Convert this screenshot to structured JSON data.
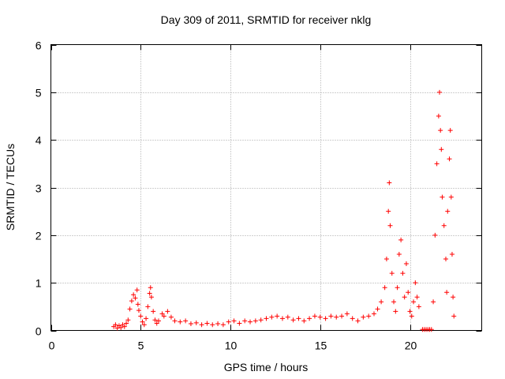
{
  "chart_data": {
    "type": "scatter",
    "title": "Day 309 of 2011, SRMTID for receiver nklg",
    "xlabel": "GPS time / hours",
    "ylabel": "SRMTID / TECUs",
    "xlim": [
      0,
      24
    ],
    "ylim": [
      0,
      6
    ],
    "x_ticks": [
      "0",
      "5",
      "10",
      "15",
      "20"
    ],
    "y_ticks": [
      "0",
      "1",
      "2",
      "3",
      "4",
      "5",
      "6"
    ],
    "grid": true,
    "marker": "+",
    "series_color": "#ff0000",
    "series": [
      {
        "name": "SRMTID",
        "points": [
          [
            3.5,
            0.08
          ],
          [
            3.6,
            0.12
          ],
          [
            3.7,
            0.05
          ],
          [
            3.8,
            0.1
          ],
          [
            3.9,
            0.06
          ],
          [
            4.0,
            0.12
          ],
          [
            4.1,
            0.08
          ],
          [
            4.2,
            0.15
          ],
          [
            4.3,
            0.22
          ],
          [
            4.4,
            0.45
          ],
          [
            4.5,
            0.62
          ],
          [
            4.6,
            0.75
          ],
          [
            4.7,
            0.68
          ],
          [
            4.8,
            0.85
          ],
          [
            4.85,
            0.55
          ],
          [
            4.9,
            0.42
          ],
          [
            5.0,
            0.3
          ],
          [
            5.1,
            0.18
          ],
          [
            5.2,
            0.12
          ],
          [
            5.3,
            0.25
          ],
          [
            5.4,
            0.5
          ],
          [
            5.5,
            0.78
          ],
          [
            5.55,
            0.9
          ],
          [
            5.6,
            0.7
          ],
          [
            5.7,
            0.4
          ],
          [
            5.8,
            0.22
          ],
          [
            5.9,
            0.15
          ],
          [
            6.0,
            0.2
          ],
          [
            6.2,
            0.35
          ],
          [
            6.3,
            0.3
          ],
          [
            6.5,
            0.4
          ],
          [
            6.7,
            0.28
          ],
          [
            6.9,
            0.2
          ],
          [
            7.2,
            0.18
          ],
          [
            7.5,
            0.2
          ],
          [
            7.8,
            0.14
          ],
          [
            8.1,
            0.16
          ],
          [
            8.4,
            0.12
          ],
          [
            8.7,
            0.15
          ],
          [
            9.0,
            0.12
          ],
          [
            9.3,
            0.14
          ],
          [
            9.6,
            0.12
          ],
          [
            9.9,
            0.18
          ],
          [
            10.2,
            0.2
          ],
          [
            10.5,
            0.15
          ],
          [
            10.8,
            0.2
          ],
          [
            11.1,
            0.18
          ],
          [
            11.4,
            0.2
          ],
          [
            11.7,
            0.22
          ],
          [
            12.0,
            0.25
          ],
          [
            12.3,
            0.28
          ],
          [
            12.6,
            0.3
          ],
          [
            12.9,
            0.25
          ],
          [
            13.2,
            0.28
          ],
          [
            13.5,
            0.22
          ],
          [
            13.8,
            0.25
          ],
          [
            14.1,
            0.2
          ],
          [
            14.4,
            0.25
          ],
          [
            14.7,
            0.3
          ],
          [
            15.0,
            0.28
          ],
          [
            15.3,
            0.25
          ],
          [
            15.6,
            0.3
          ],
          [
            15.9,
            0.28
          ],
          [
            16.2,
            0.3
          ],
          [
            16.5,
            0.35
          ],
          [
            16.8,
            0.25
          ],
          [
            17.1,
            0.2
          ],
          [
            17.4,
            0.28
          ],
          [
            17.7,
            0.3
          ],
          [
            18.0,
            0.35
          ],
          [
            18.2,
            0.45
          ],
          [
            18.4,
            0.6
          ],
          [
            18.6,
            0.9
          ],
          [
            18.7,
            1.5
          ],
          [
            18.8,
            2.5
          ],
          [
            18.85,
            3.1
          ],
          [
            18.9,
            2.2
          ],
          [
            19.0,
            1.2
          ],
          [
            19.1,
            0.6
          ],
          [
            19.2,
            0.4
          ],
          [
            19.3,
            0.9
          ],
          [
            19.4,
            1.6
          ],
          [
            19.5,
            1.9
          ],
          [
            19.6,
            1.2
          ],
          [
            19.7,
            0.7
          ],
          [
            19.8,
            1.4
          ],
          [
            19.9,
            0.8
          ],
          [
            20.0,
            0.4
          ],
          [
            20.1,
            0.3
          ],
          [
            20.2,
            0.6
          ],
          [
            20.3,
            1.0
          ],
          [
            20.4,
            0.7
          ],
          [
            20.5,
            0.5
          ],
          [
            20.7,
            0.02
          ],
          [
            20.8,
            0.02
          ],
          [
            20.9,
            0.02
          ],
          [
            21.0,
            0.02
          ],
          [
            21.1,
            0.02
          ],
          [
            21.2,
            0.02
          ],
          [
            21.3,
            0.6
          ],
          [
            21.4,
            2.0
          ],
          [
            21.5,
            3.5
          ],
          [
            21.6,
            4.5
          ],
          [
            21.65,
            5.0
          ],
          [
            21.7,
            4.2
          ],
          [
            21.75,
            3.8
          ],
          [
            21.8,
            2.8
          ],
          [
            21.9,
            2.2
          ],
          [
            22.0,
            1.5
          ],
          [
            22.05,
            0.8
          ],
          [
            22.1,
            2.5
          ],
          [
            22.2,
            3.6
          ],
          [
            22.25,
            4.2
          ],
          [
            22.3,
            2.8
          ],
          [
            22.35,
            1.6
          ],
          [
            22.4,
            0.7
          ],
          [
            22.45,
            0.3
          ]
        ]
      }
    ]
  }
}
